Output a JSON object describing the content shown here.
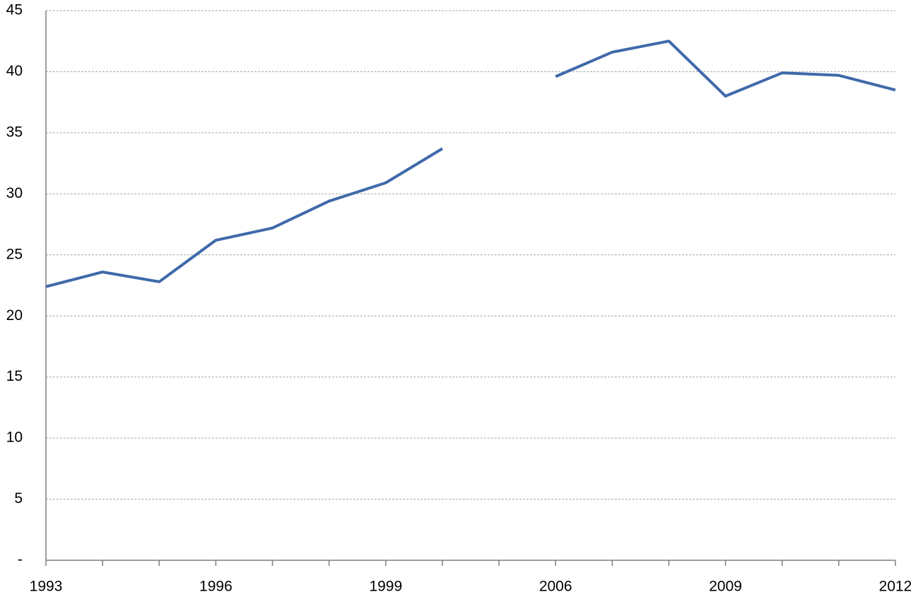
{
  "chart_data": {
    "type": "line",
    "categories": [
      "1993",
      null,
      null,
      "1996",
      null,
      null,
      "1999",
      null,
      null,
      "2006",
      null,
      null,
      "2009",
      null,
      null,
      "2012"
    ],
    "series": [
      {
        "color": "#3f69aa",
        "values": [
          22.4,
          23.6,
          22.8,
          26.2,
          27.2,
          29.4,
          30.9,
          33.7,
          null,
          39.6,
          41.6,
          42.5,
          38.0,
          39.9,
          39.7,
          38.5
        ]
      }
    ],
    "ylim": [
      0,
      45
    ],
    "yticks": [
      {
        "value": 0,
        "label": "-"
      },
      5,
      10,
      15,
      20,
      25,
      30,
      35,
      40,
      45
    ],
    "grid": true
  }
}
